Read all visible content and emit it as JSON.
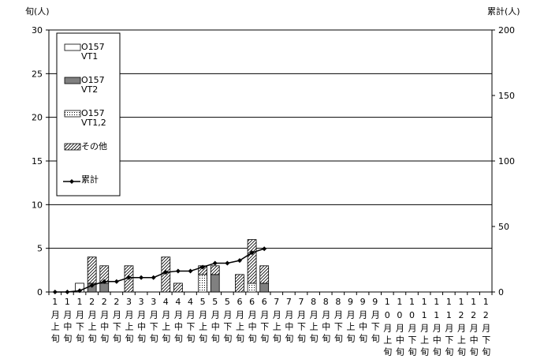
{
  "chart_data": {
    "type": "bar",
    "y_label": "旬(人)",
    "y2_label": "累計(人)",
    "categories": [
      "1月上旬",
      "1月中旬",
      "1月下旬",
      "2月上旬",
      "2月中旬",
      "2月下旬",
      "3月上旬",
      "3月中旬",
      "3月下旬",
      "4月上旬",
      "4月中旬",
      "4月下旬",
      "5月上旬",
      "5月中旬",
      "5月下旬",
      "6月上旬",
      "6月中旬",
      "6月下旬",
      "7月上旬",
      "7月中旬",
      "7月下旬",
      "8月上旬",
      "8月中旬",
      "8月下旬",
      "9月上旬",
      "9月中旬",
      "9月下旬",
      "10月上旬",
      "10月中旬",
      "10月下旬",
      "11月上旬",
      "11月中旬",
      "11月下旬",
      "12月上旬",
      "12月中旬",
      "12月下旬"
    ],
    "series": [
      {
        "name": "O157 VT1",
        "color": "#ffffff",
        "pattern": "none",
        "values": [
          0,
          0,
          1,
          0,
          0,
          0,
          0,
          0,
          0,
          0,
          0,
          0,
          0,
          0,
          0,
          0,
          0,
          0,
          0,
          0,
          0,
          0,
          0,
          0,
          0,
          0,
          0,
          0,
          0,
          0,
          0,
          0,
          0,
          0,
          0,
          0
        ]
      },
      {
        "name": "O157 VT2",
        "color": "#808080",
        "pattern": "none",
        "values": [
          0,
          0,
          0,
          1,
          1,
          0,
          0,
          0,
          0,
          0,
          0,
          0,
          0,
          2,
          0,
          0,
          0,
          1,
          0,
          0,
          0,
          0,
          0,
          0,
          0,
          0,
          0,
          0,
          0,
          0,
          0,
          0,
          0,
          0,
          0,
          0
        ]
      },
      {
        "name": "O157 VT1,2",
        "color": "#ffffff",
        "pattern": "dots",
        "values": [
          0,
          0,
          0,
          0,
          0,
          0,
          0,
          0,
          0,
          0,
          0,
          0,
          2,
          0,
          0,
          0,
          1,
          0,
          0,
          0,
          0,
          0,
          0,
          0,
          0,
          0,
          0,
          0,
          0,
          0,
          0,
          0,
          0,
          0,
          0,
          0
        ]
      },
      {
        "name": "その他",
        "color": "#ffffff",
        "pattern": "hatch",
        "values": [
          0,
          0,
          0,
          3,
          2,
          0,
          3,
          0,
          0,
          4,
          1,
          0,
          1,
          1,
          0,
          2,
          5,
          2,
          0,
          0,
          0,
          0,
          0,
          0,
          0,
          0,
          0,
          0,
          0,
          0,
          0,
          0,
          0,
          0,
          0,
          0
        ]
      },
      {
        "name": "累計",
        "color": "#000000",
        "axis": "y2",
        "type": "line",
        "values": [
          0,
          0,
          1,
          5,
          8,
          8,
          11,
          11,
          11,
          15,
          16,
          16,
          19,
          22,
          22,
          24,
          30,
          33,
          null,
          null,
          null,
          null,
          null,
          null,
          null,
          null,
          null,
          null,
          null,
          null,
          null,
          null,
          null,
          null,
          null,
          null
        ]
      }
    ],
    "ylim": [
      0,
      30
    ],
    "yticks": [
      0,
      5,
      10,
      15,
      20,
      25,
      30
    ],
    "y2lim": [
      0,
      200
    ],
    "y2ticks": [
      0,
      50,
      100,
      150,
      200
    ],
    "grid": true,
    "legend": "upper left"
  }
}
